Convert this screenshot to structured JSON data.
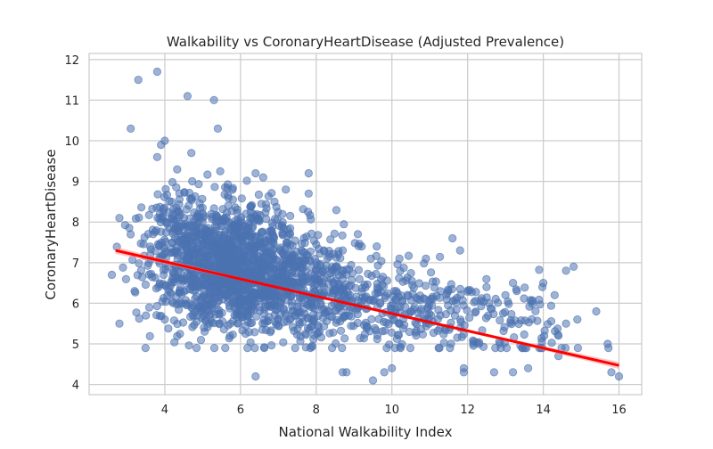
{
  "chart_data": {
    "type": "scatter",
    "title": "Walkability vs CoronaryHeartDisease (Adjusted Prevalence)",
    "xlabel": "National Walkability Index",
    "ylabel": "CoronaryHeartDisease",
    "xlim": [
      2.0,
      16.6
    ],
    "ylim": [
      3.75,
      12.15
    ],
    "x_ticks": [
      4,
      6,
      8,
      10,
      12,
      14,
      16
    ],
    "y_ticks": [
      4,
      5,
      6,
      7,
      8,
      9,
      10,
      11,
      12
    ],
    "x_tick_labels": [
      "4",
      "6",
      "8",
      "10",
      "12",
      "14",
      "16"
    ],
    "y_tick_labels": [
      "4",
      "5",
      "6",
      "7",
      "8",
      "9",
      "10",
      "11",
      "12"
    ],
    "grid": true,
    "colors": {
      "points": "#4c72b0",
      "regression": "#ff0000",
      "ci_band": "#ff9999",
      "grid": "#cccccc",
      "frame": "#cccccc"
    },
    "regression": {
      "x": [
        2.7,
        16.0
      ],
      "y": [
        7.3,
        4.47
      ]
    },
    "notable_points": [
      {
        "x": 3.8,
        "y": 11.7
      },
      {
        "x": 3.3,
        "y": 11.5
      },
      {
        "x": 4.6,
        "y": 11.1
      },
      {
        "x": 5.3,
        "y": 11.0
      },
      {
        "x": 5.4,
        "y": 10.3
      },
      {
        "x": 3.1,
        "y": 10.3
      },
      {
        "x": 4.0,
        "y": 10.0
      },
      {
        "x": 3.9,
        "y": 9.9
      },
      {
        "x": 4.7,
        "y": 9.7
      },
      {
        "x": 3.8,
        "y": 9.6
      },
      {
        "x": 7.8,
        "y": 9.2
      },
      {
        "x": 6.4,
        "y": 9.2
      },
      {
        "x": 6.6,
        "y": 9.1
      },
      {
        "x": 7.8,
        "y": 8.7
      },
      {
        "x": 8.2,
        "y": 7.3
      },
      {
        "x": 9.1,
        "y": 7.7
      },
      {
        "x": 9.6,
        "y": 7.4
      },
      {
        "x": 10.2,
        "y": 7.1
      },
      {
        "x": 11.6,
        "y": 7.6
      },
      {
        "x": 11.8,
        "y": 7.3
      },
      {
        "x": 14.8,
        "y": 6.9
      },
      {
        "x": 14.6,
        "y": 6.8
      },
      {
        "x": 14.0,
        "y": 6.5
      },
      {
        "x": 13.2,
        "y": 6.5
      },
      {
        "x": 13.3,
        "y": 6.3
      },
      {
        "x": 14.3,
        "y": 6.2
      },
      {
        "x": 15.4,
        "y": 5.8
      },
      {
        "x": 14.9,
        "y": 5.6
      },
      {
        "x": 14.6,
        "y": 5.5
      },
      {
        "x": 15.7,
        "y": 5.0
      },
      {
        "x": 15.8,
        "y": 4.3
      },
      {
        "x": 16.0,
        "y": 4.2
      },
      {
        "x": 14.4,
        "y": 4.7
      },
      {
        "x": 14.4,
        "y": 5.2
      },
      {
        "x": 13.6,
        "y": 4.4
      },
      {
        "x": 12.7,
        "y": 4.3
      },
      {
        "x": 13.2,
        "y": 4.3
      },
      {
        "x": 11.9,
        "y": 4.3
      },
      {
        "x": 11.9,
        "y": 4.4
      },
      {
        "x": 9.8,
        "y": 4.3
      },
      {
        "x": 9.5,
        "y": 4.1
      },
      {
        "x": 10.0,
        "y": 4.4
      },
      {
        "x": 8.8,
        "y": 4.3
      },
      {
        "x": 8.7,
        "y": 4.3
      },
      {
        "x": 6.4,
        "y": 4.2
      },
      {
        "x": 2.8,
        "y": 5.5
      },
      {
        "x": 2.6,
        "y": 6.7
      },
      {
        "x": 2.8,
        "y": 8.1
      },
      {
        "x": 3.2,
        "y": 6.3
      },
      {
        "x": 3.5,
        "y": 5.7
      },
      {
        "x": 4.0,
        "y": 5.6
      },
      {
        "x": 10.9,
        "y": 7.1
      },
      {
        "x": 9.2,
        "y": 7.4
      },
      {
        "x": 8.7,
        "y": 7.3
      },
      {
        "x": 12.5,
        "y": 6.4
      },
      {
        "x": 13.0,
        "y": 6.2
      },
      {
        "x": 12.3,
        "y": 5.0
      }
    ],
    "clusters": [
      {
        "n": 1350,
        "cx": 5.8,
        "cy": 6.9,
        "sx": 1.0,
        "sy": 0.75
      },
      {
        "n": 380,
        "cx": 7.8,
        "cy": 6.3,
        "sx": 1.1,
        "sy": 0.6
      },
      {
        "n": 230,
        "cx": 10.3,
        "cy": 5.8,
        "sx": 1.3,
        "sy": 0.55
      },
      {
        "n": 90,
        "cx": 12.8,
        "cy": 5.4,
        "sx": 1.1,
        "sy": 0.55
      },
      {
        "n": 130,
        "cx": 4.4,
        "cy": 7.9,
        "sx": 0.55,
        "sy": 0.5
      }
    ]
  }
}
